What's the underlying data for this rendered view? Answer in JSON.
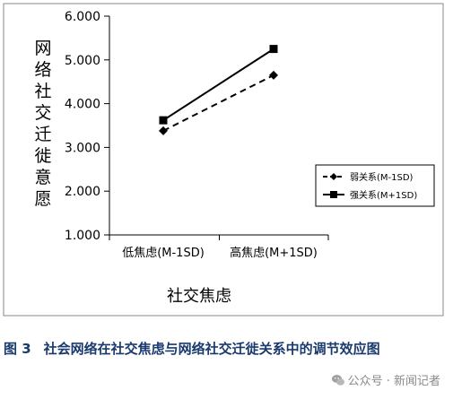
{
  "chart_data": {
    "type": "line",
    "categories": [
      "低焦虑(M-1SD)",
      "高焦虑(M+1SD)"
    ],
    "series": [
      {
        "name": "弱关系(M-1SD)",
        "values": [
          3.38,
          4.65
        ],
        "line_style": "dashed",
        "marker": "diamond"
      },
      {
        "name": "强关系(M+1SD)",
        "values": [
          3.62,
          5.25
        ],
        "line_style": "solid",
        "marker": "square"
      }
    ],
    "title": "",
    "xlabel": "社交焦虑",
    "ylabel": "网络社交迁徙意愿",
    "ylim": [
      1.0,
      6.0
    ],
    "yticks": [
      "1.000",
      "2.000",
      "3.000",
      "4.000",
      "5.000",
      "6.000"
    ],
    "grid": false,
    "legend_placement": "right",
    "colors": {
      "series": "#000000",
      "frame": "#888888"
    }
  },
  "caption": {
    "number": "图 3",
    "text": "社会网络在社交焦虑与网络社交迁徙关系中的调节效应图"
  },
  "watermark": {
    "icon": "wechat-icon",
    "text": "公众号 · 新闻记者"
  }
}
